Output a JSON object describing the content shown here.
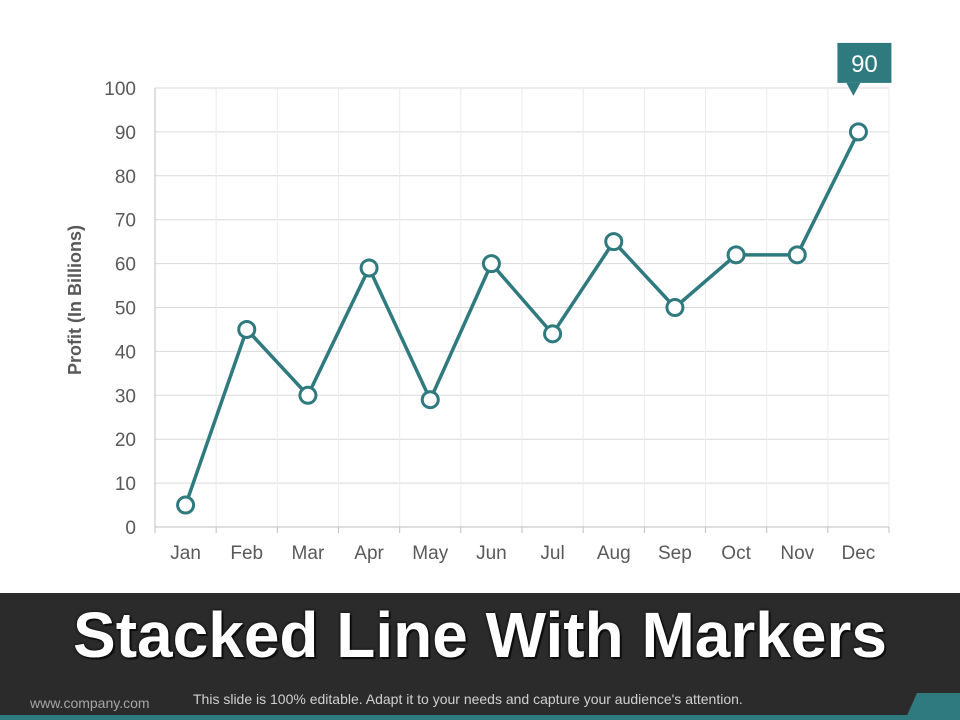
{
  "slide": {
    "title": "Stacked Line With Markers",
    "footer_url": "www.company.com",
    "footer_note": "This slide is 100% editable. Adapt it to your needs and capture your audience's attention."
  },
  "colors": {
    "line": "#2f7a7e",
    "marker_fill": "#ffffff",
    "grid": "#d9d9d9",
    "footer_band": "#2b2b2b",
    "accent": "#2f7a7e"
  },
  "chart_data": {
    "type": "line",
    "categories": [
      "Jan",
      "Feb",
      "Mar",
      "Apr",
      "May",
      "Jun",
      "Jul",
      "Aug",
      "Sep",
      "Oct",
      "Nov",
      "Dec"
    ],
    "series": [
      {
        "values": [
          5,
          45,
          30,
          59,
          29,
          60,
          44,
          65,
          50,
          62,
          62,
          90
        ]
      }
    ],
    "ylabel": "Profit (In Billions)",
    "ylim": [
      0,
      100
    ],
    "yticks": [
      0,
      10,
      20,
      30,
      40,
      50,
      60,
      70,
      80,
      90,
      100
    ],
    "grid": true,
    "markers": "hollow-circle",
    "callout": {
      "category": "Dec",
      "label": "90"
    }
  }
}
